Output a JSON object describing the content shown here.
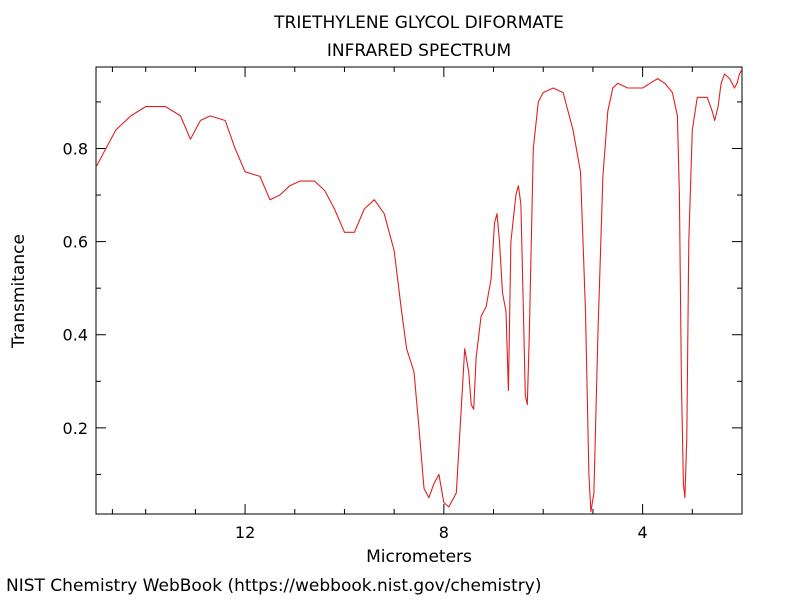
{
  "footer": "NIST Chemistry WebBook (https://webbook.nist.gov/chemistry)",
  "chart_data": {
    "type": "line",
    "title": "TRIETHYLENE GLYCOL DIFORMATE",
    "subtitle": "INFRARED SPECTRUM",
    "xlabel": "Micrometers",
    "ylabel": "Transmitance",
    "xlim": [
      15.0,
      2.0
    ],
    "ylim": [
      0.015,
      0.975
    ],
    "x_reversed": true,
    "grid": false,
    "x_ticks": [
      {
        "value": 12,
        "label": "12"
      },
      {
        "value": 8,
        "label": "8"
      },
      {
        "value": 4,
        "label": "4"
      }
    ],
    "x_minor_ticks": [
      14.67,
      14,
      13,
      11,
      10,
      9,
      7,
      6,
      5,
      3
    ],
    "y_ticks": [
      {
        "value": 0.2,
        "label": "0.2"
      },
      {
        "value": 0.4,
        "label": "0.4"
      },
      {
        "value": 0.6,
        "label": "0.6"
      },
      {
        "value": 0.8,
        "label": "0.8"
      }
    ],
    "y_minor_ticks": [
      0.1,
      0.3,
      0.5,
      0.7,
      0.9
    ],
    "series": [
      {
        "color": "#e02020",
        "points": [
          [
            15.0,
            0.76
          ],
          [
            14.8,
            0.8
          ],
          [
            14.6,
            0.84
          ],
          [
            14.3,
            0.87
          ],
          [
            14.0,
            0.89
          ],
          [
            13.6,
            0.89
          ],
          [
            13.3,
            0.87
          ],
          [
            13.1,
            0.82
          ],
          [
            12.9,
            0.86
          ],
          [
            12.7,
            0.87
          ],
          [
            12.4,
            0.86
          ],
          [
            12.2,
            0.8
          ],
          [
            12.0,
            0.75
          ],
          [
            11.7,
            0.74
          ],
          [
            11.5,
            0.69
          ],
          [
            11.3,
            0.7
          ],
          [
            11.1,
            0.72
          ],
          [
            10.9,
            0.73
          ],
          [
            10.6,
            0.73
          ],
          [
            10.4,
            0.71
          ],
          [
            10.2,
            0.67
          ],
          [
            10.0,
            0.62
          ],
          [
            9.8,
            0.62
          ],
          [
            9.6,
            0.67
          ],
          [
            9.4,
            0.69
          ],
          [
            9.2,
            0.66
          ],
          [
            9.0,
            0.58
          ],
          [
            8.85,
            0.45
          ],
          [
            8.75,
            0.37
          ],
          [
            8.6,
            0.32
          ],
          [
            8.5,
            0.2
          ],
          [
            8.4,
            0.07
          ],
          [
            8.3,
            0.05
          ],
          [
            8.2,
            0.08
          ],
          [
            8.1,
            0.1
          ],
          [
            8.0,
            0.04
          ],
          [
            7.9,
            0.03
          ],
          [
            7.75,
            0.06
          ],
          [
            7.65,
            0.24
          ],
          [
            7.58,
            0.37
          ],
          [
            7.5,
            0.32
          ],
          [
            7.45,
            0.25
          ],
          [
            7.4,
            0.24
          ],
          [
            7.35,
            0.35
          ],
          [
            7.25,
            0.44
          ],
          [
            7.15,
            0.46
          ],
          [
            7.05,
            0.52
          ],
          [
            6.98,
            0.64
          ],
          [
            6.93,
            0.66
          ],
          [
            6.88,
            0.6
          ],
          [
            6.82,
            0.49
          ],
          [
            6.75,
            0.45
          ],
          [
            6.7,
            0.28
          ],
          [
            6.65,
            0.6
          ],
          [
            6.55,
            0.7
          ],
          [
            6.5,
            0.72
          ],
          [
            6.45,
            0.68
          ],
          [
            6.4,
            0.45
          ],
          [
            6.36,
            0.27
          ],
          [
            6.32,
            0.25
          ],
          [
            6.28,
            0.4
          ],
          [
            6.2,
            0.8
          ],
          [
            6.1,
            0.9
          ],
          [
            6.0,
            0.92
          ],
          [
            5.8,
            0.93
          ],
          [
            5.6,
            0.92
          ],
          [
            5.4,
            0.84
          ],
          [
            5.25,
            0.75
          ],
          [
            5.15,
            0.45
          ],
          [
            5.08,
            0.1
          ],
          [
            5.04,
            0.02
          ],
          [
            4.98,
            0.06
          ],
          [
            4.9,
            0.4
          ],
          [
            4.8,
            0.74
          ],
          [
            4.7,
            0.88
          ],
          [
            4.6,
            0.93
          ],
          [
            4.5,
            0.94
          ],
          [
            4.3,
            0.93
          ],
          [
            4.0,
            0.93
          ],
          [
            3.85,
            0.94
          ],
          [
            3.7,
            0.95
          ],
          [
            3.55,
            0.94
          ],
          [
            3.4,
            0.92
          ],
          [
            3.3,
            0.87
          ],
          [
            3.26,
            0.7
          ],
          [
            3.22,
            0.3
          ],
          [
            3.18,
            0.08
          ],
          [
            3.15,
            0.05
          ],
          [
            3.11,
            0.18
          ],
          [
            3.07,
            0.6
          ],
          [
            3.0,
            0.84
          ],
          [
            2.9,
            0.91
          ],
          [
            2.7,
            0.91
          ],
          [
            2.6,
            0.88
          ],
          [
            2.55,
            0.86
          ],
          [
            2.48,
            0.89
          ],
          [
            2.42,
            0.94
          ],
          [
            2.35,
            0.96
          ],
          [
            2.25,
            0.95
          ],
          [
            2.15,
            0.93
          ],
          [
            2.1,
            0.94
          ],
          [
            2.05,
            0.96
          ],
          [
            2.0,
            0.97
          ]
        ]
      }
    ]
  }
}
